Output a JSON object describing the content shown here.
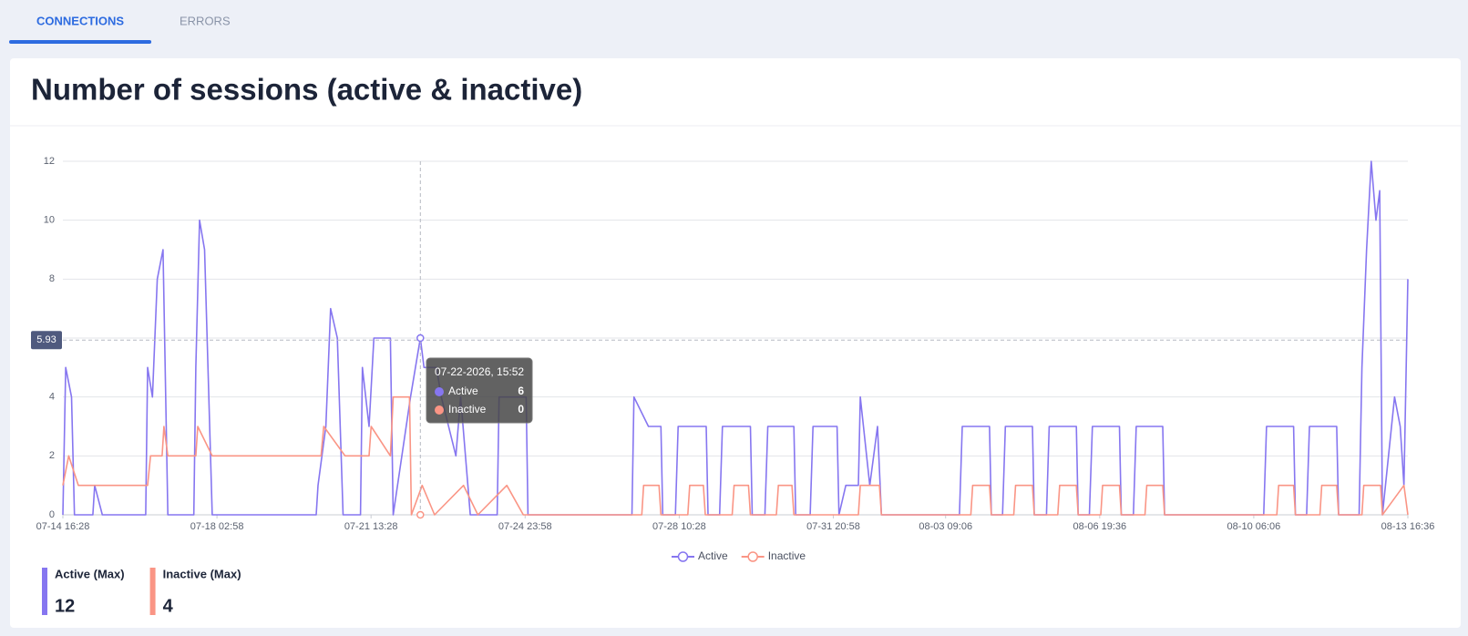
{
  "tabs": [
    {
      "label": "CONNECTIONS",
      "active": true
    },
    {
      "label": "ERRORS",
      "active": false
    }
  ],
  "card": {
    "title": "Number of sessions (active & inactive)"
  },
  "chart_data": {
    "type": "line",
    "xlim": [
      "2026-07-14 16:28",
      "2026-08-13 16:36"
    ],
    "xticks": [
      {
        "value": "2026-07-14 16:28",
        "label": "07-14 16:28"
      },
      {
        "value": "2026-07-18 02:58",
        "label": "07-18 02:58"
      },
      {
        "value": "2026-07-21 13:28",
        "label": "07-21 13:28"
      },
      {
        "value": "2026-07-24 23:58",
        "label": "07-24 23:58"
      },
      {
        "value": "2026-07-28 10:28",
        "label": "07-28 10:28"
      },
      {
        "value": "2026-07-31 20:58",
        "label": "07-31 20:58"
      },
      {
        "value": "2026-08-03 09:06",
        "label": "08-03 09:06"
      },
      {
        "value": "2026-08-06 19:36",
        "label": "08-06 19:36"
      },
      {
        "value": "2026-08-10 06:06",
        "label": "08-10 06:06"
      },
      {
        "value": "2026-08-13 16:36",
        "label": "08-13 16:36"
      }
    ],
    "ylim": [
      0,
      12
    ],
    "yticks": [
      0,
      2,
      4,
      6,
      8,
      10,
      12
    ],
    "grid": true,
    "legend": "bottom",
    "crosshair_value": 5.93,
    "tooltip": {
      "title": "07-22-2026, 15:52",
      "rows": [
        {
          "name": "Active",
          "value": 6
        },
        {
          "name": "Inactive",
          "value": 0
        }
      ]
    },
    "series": [
      {
        "name": "Active",
        "color": "#8676f0",
        "x": [
          "2026-07-14 16:28",
          "2026-07-14 18:00",
          "2026-07-14 21:06",
          "2026-07-14 22:40",
          "2026-07-15 08:30",
          "2026-07-15 09:30",
          "2026-07-15 13:36",
          "2026-07-16 12:50",
          "2026-07-16 13:50",
          "2026-07-16 16:25",
          "2026-07-16 19:00",
          "2026-07-16 22:05",
          "2026-07-17 00:40",
          "2026-07-17 14:35",
          "2026-07-17 15:40",
          "2026-07-17 17:40",
          "2026-07-17 20:20",
          "2026-07-18 00:25",
          "2026-07-20 08:05",
          "2026-07-20 09:05",
          "2026-07-20 13:15",
          "2026-07-20 15:50",
          "2026-07-20 19:25",
          "2026-07-20 22:30",
          "2026-07-21 07:50",
          "2026-07-21 08:50",
          "2026-07-21 12:25",
          "2026-07-21 15:00",
          "2026-07-21 23:50",
          "2026-07-22 01:20",
          "2026-07-22 10:35",
          "2026-07-22 15:52",
          "2026-07-22 17:50",
          "2026-07-23 00:30",
          "2026-07-23 03:05",
          "2026-07-23 10:55",
          "2026-07-23 13:25",
          "2026-07-23 18:35",
          "2026-07-24 09:00",
          "2026-07-24 10:00",
          "2026-07-25 00:30",
          "2026-07-25 01:30",
          "2026-07-27 09:10",
          "2026-07-27 10:15",
          "2026-07-27 18:00",
          "2026-07-28 00:40",
          "2026-07-28 01:40",
          "2026-07-28 08:25",
          "2026-07-28 09:55",
          "2026-07-29 00:55",
          "2026-07-29 01:55",
          "2026-07-29 08:05",
          "2026-07-29 09:35",
          "2026-07-30 00:35",
          "2026-07-30 01:35",
          "2026-07-30 08:20",
          "2026-07-30 09:55",
          "2026-07-30 23:50",
          "2026-07-31 00:50",
          "2026-07-31 08:35",
          "2026-07-31 10:05",
          "2026-07-31 23:00",
          "2026-08-01 00:00",
          "2026-08-01 03:40",
          "2026-08-01 10:25",
          "2026-08-01 11:25",
          "2026-08-01 16:30",
          "2026-08-01 20:40",
          "2026-08-01 22:45",
          "2026-08-03 16:30",
          "2026-08-03 18:00",
          "2026-08-04 08:35",
          "2026-08-04 09:35",
          "2026-08-04 15:35",
          "2026-08-04 17:05",
          "2026-08-05 07:35",
          "2026-08-05 08:35",
          "2026-08-05 15:05",
          "2026-08-05 16:35",
          "2026-08-06 07:05",
          "2026-08-06 08:05",
          "2026-08-06 14:05",
          "2026-08-06 15:40",
          "2026-08-07 06:10",
          "2026-08-07 07:10",
          "2026-08-07 13:40",
          "2026-08-07 15:10",
          "2026-08-08 05:20",
          "2026-08-08 06:20",
          "2026-08-10 11:25",
          "2026-08-10 12:55",
          "2026-08-11 03:25",
          "2026-08-11 04:25",
          "2026-08-11 10:25",
          "2026-08-11 11:55",
          "2026-08-12 02:30",
          "2026-08-12 03:30",
          "2026-08-12 14:30",
          "2026-08-12 16:00",
          "2026-08-12 18:30",
          "2026-08-12 21:00",
          "2026-08-12 23:30",
          "2026-08-13 01:30",
          "2026-08-13 03:00",
          "2026-08-13 09:30",
          "2026-08-13 12:30",
          "2026-08-13 14:30",
          "2026-08-13 16:36"
        ],
        "values": [
          0,
          5,
          4,
          0,
          0,
          1,
          0,
          0,
          5,
          4,
          8,
          9,
          0,
          0,
          5,
          10,
          9,
          0,
          0,
          1,
          3,
          7,
          6,
          0,
          0,
          5,
          3,
          6,
          6,
          0,
          4,
          6,
          5,
          5,
          4,
          2,
          4,
          0,
          0,
          4,
          4,
          0,
          0,
          4,
          3,
          3,
          0,
          0,
          3,
          3,
          0,
          0,
          3,
          3,
          0,
          0,
          3,
          3,
          0,
          0,
          3,
          3,
          0,
          1,
          1,
          4,
          1,
          3,
          0,
          0,
          3,
          3,
          0,
          0,
          3,
          3,
          0,
          0,
          3,
          3,
          0,
          0,
          3,
          3,
          0,
          0,
          3,
          3,
          0,
          0,
          3,
          3,
          0,
          0,
          3,
          3,
          0,
          0,
          5,
          9,
          12,
          10,
          11,
          0,
          4,
          3,
          1,
          8
        ]
      },
      {
        "name": "Inactive",
        "color": "#fa9585",
        "x": [
          "2026-07-14 16:28",
          "2026-07-14 19:35",
          "2026-07-15 00:45",
          "2026-07-16 13:50",
          "2026-07-16 15:25",
          "2026-07-16 21:35",
          "2026-07-16 22:35",
          "2026-07-17 00:40",
          "2026-07-17 15:40",
          "2026-07-17 16:40",
          "2026-07-18 00:25",
          "2026-07-20 10:40",
          "2026-07-20 12:10",
          "2026-07-20 23:35",
          "2026-07-21 12:25",
          "2026-07-21 13:30",
          "2026-07-21 23:50",
          "2026-07-22 01:20",
          "2026-07-22 10:05",
          "2026-07-22 11:05",
          "2026-07-22 16:50",
          "2026-07-22 23:30",
          "2026-07-23 15:00",
          "2026-07-23 22:40",
          "2026-07-24 14:10",
          "2026-07-24 23:00",
          "2026-07-27 14:25",
          "2026-07-27 15:25",
          "2026-07-27 23:40",
          "2026-07-28 00:40",
          "2026-07-28 15:05",
          "2026-07-28 16:05",
          "2026-07-28 23:25",
          "2026-07-29 00:25",
          "2026-07-29 14:50",
          "2026-07-29 15:50",
          "2026-07-29 23:35",
          "2026-07-30 00:35",
          "2026-07-30 14:30",
          "2026-07-30 15:35",
          "2026-07-30 22:50",
          "2026-07-30 23:50",
          "2026-08-01 10:25",
          "2026-08-01 11:25",
          "2026-08-01 21:40",
          "2026-08-01 22:45",
          "2026-08-03 22:35",
          "2026-08-03 23:35",
          "2026-08-04 08:35",
          "2026-08-04 09:35",
          "2026-08-04 21:35",
          "2026-08-04 22:35",
          "2026-08-05 07:35",
          "2026-08-05 08:35",
          "2026-08-05 21:10",
          "2026-08-05 22:10",
          "2026-08-06 07:05",
          "2026-08-06 08:05",
          "2026-08-06 20:10",
          "2026-08-06 21:10",
          "2026-08-07 06:10",
          "2026-08-07 07:10",
          "2026-08-07 19:50",
          "2026-08-07 20:50",
          "2026-08-08 05:20",
          "2026-08-08 06:20",
          "2026-08-10 18:25",
          "2026-08-10 19:25",
          "2026-08-11 03:25",
          "2026-08-11 04:25",
          "2026-08-11 17:30",
          "2026-08-11 18:30",
          "2026-08-12 02:30",
          "2026-08-12 03:30",
          "2026-08-12 16:00",
          "2026-08-12 17:00",
          "2026-08-13 02:00",
          "2026-08-13 03:00",
          "2026-08-13 14:30",
          "2026-08-13 16:36"
        ],
        "values": [
          1,
          2,
          1,
          1,
          2,
          2,
          3,
          2,
          2,
          3,
          2,
          2,
          3,
          2,
          2,
          3,
          2,
          4,
          4,
          0,
          1,
          0,
          1,
          0,
          1,
          0,
          0,
          1,
          1,
          0,
          0,
          1,
          1,
          0,
          0,
          1,
          1,
          0,
          0,
          1,
          1,
          0,
          0,
          1,
          1,
          0,
          0,
          1,
          1,
          0,
          0,
          1,
          1,
          0,
          0,
          1,
          1,
          0,
          0,
          1,
          1,
          0,
          0,
          1,
          1,
          0,
          0,
          1,
          1,
          0,
          0,
          1,
          1,
          0,
          0,
          1,
          1,
          0,
          1,
          0
        ]
      }
    ]
  },
  "summary": [
    {
      "label": "Active (Max)",
      "value": 12,
      "color": "#8676f0"
    },
    {
      "label": "Inactive (Max)",
      "value": 4,
      "color": "#fa9585"
    }
  ]
}
